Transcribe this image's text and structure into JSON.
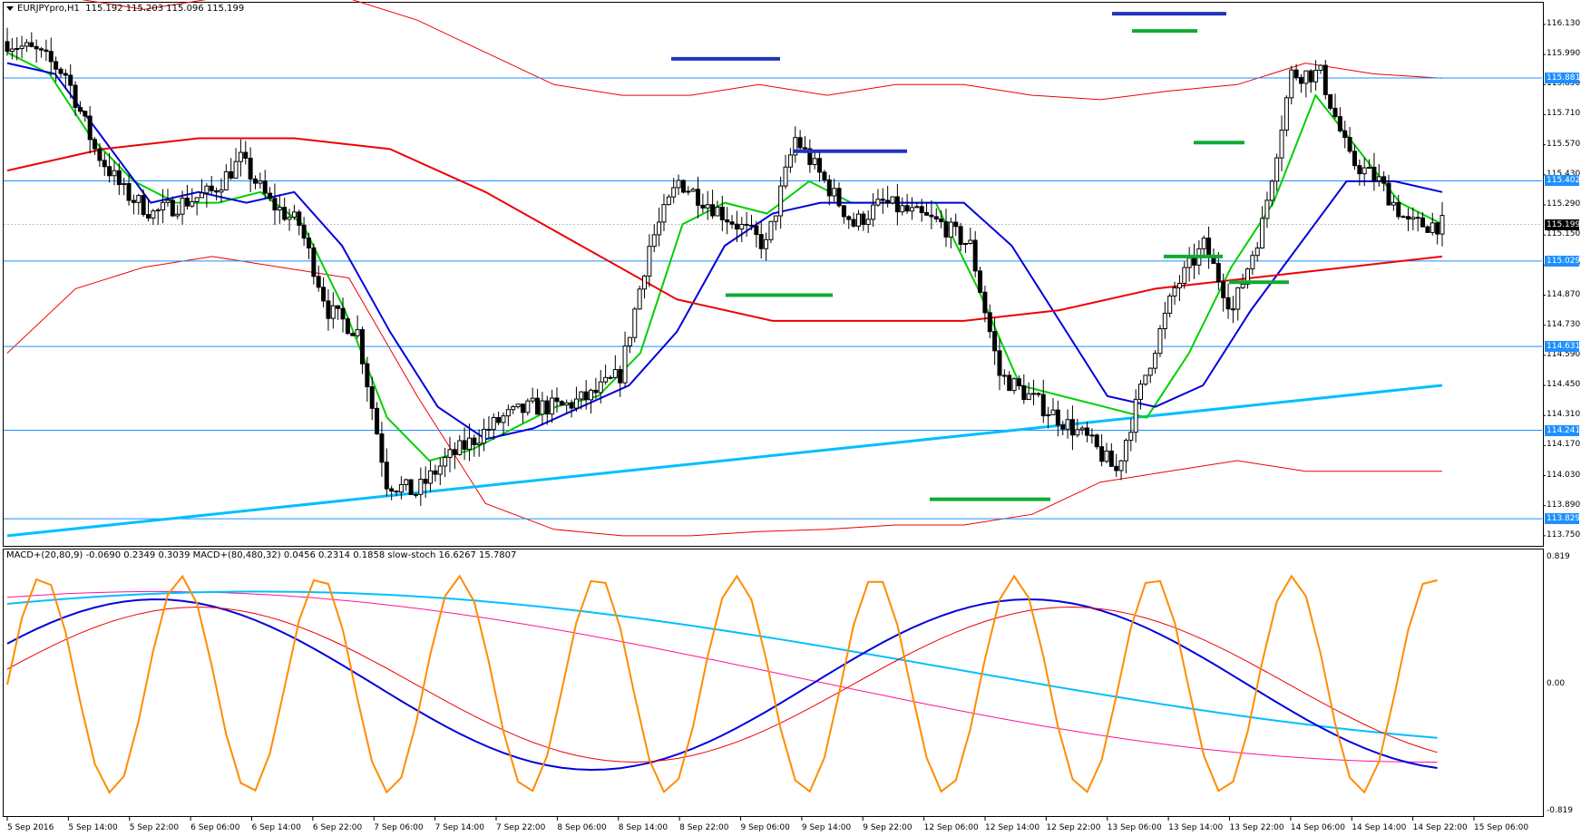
{
  "header": {
    "symbol": "EURJPYpro,H1",
    "ohlc": "115.192 115.203 115.096 115.199"
  },
  "indicator_header": "MACD+(20,80,9) -0.0690 0.2349 0.3039  MACD+(80,480,32) 0.0456 0.2314 0.1858  slow-stoch 16.6267 15.7807",
  "price_axis": [
    "116.130",
    "115.990",
    "115.850",
    "115.710",
    "115.570",
    "115.430",
    "115.290",
    "115.150",
    "115.010",
    "114.870",
    "114.730",
    "114.590",
    "114.450",
    "114.310",
    "114.170",
    "114.030",
    "113.890",
    "113.750"
  ],
  "price_badges": [
    {
      "label": "115.881",
      "price": 115.881,
      "current": false
    },
    {
      "label": "115.402",
      "price": 115.402,
      "current": false
    },
    {
      "label": "115.199",
      "price": 115.199,
      "current": true
    },
    {
      "label": "115.029",
      "price": 115.029,
      "current": false
    },
    {
      "label": "114.631",
      "price": 114.631,
      "current": false
    },
    {
      "label": "114.241",
      "price": 114.241,
      "current": false
    },
    {
      "label": "113.829",
      "price": 113.829,
      "current": false
    }
  ],
  "indicator_axis": [
    "0.819",
    "0.00",
    "-0.819"
  ],
  "time_axis": [
    "5 Sep 2016",
    "5 Sep 14:00",
    "5 Sep 22:00",
    "6 Sep 06:00",
    "6 Sep 14:00",
    "6 Sep 22:00",
    "7 Sep 06:00",
    "7 Sep 14:00",
    "7 Sep 22:00",
    "8 Sep 06:00",
    "8 Sep 14:00",
    "8 Sep 22:00",
    "9 Sep 06:00",
    "9 Sep 14:00",
    "9 Sep 22:00",
    "12 Sep 06:00",
    "12 Sep 14:00",
    "12 Sep 22:00",
    "13 Sep 06:00",
    "13 Sep 14:00",
    "13 Sep 22:00",
    "14 Sep 06:00",
    "14 Sep 14:00",
    "14 Sep 22:00",
    "15 Sep 06:00"
  ],
  "colors": {
    "hline": "#1e90ff",
    "trendline": "#00bfff",
    "ma_fast": "#00d000",
    "ma_mid": "#0000dd",
    "ma_slow": "#ee0000",
    "band": "#ee0000",
    "resistance_mark": "#2233bb",
    "support_mark": "#11aa33",
    "stoch": "#ff8c00"
  },
  "chart_data": {
    "type": "candlestick",
    "symbol": "EURJPYpro",
    "timeframe": "H1",
    "last_ohlc": {
      "open": 115.192,
      "high": 115.203,
      "low": 115.096,
      "close": 115.199
    },
    "ylim": [
      113.72,
      116.21
    ],
    "horizontal_levels": [
      115.881,
      115.402,
      115.029,
      114.631,
      114.241,
      113.829
    ],
    "close_path": [
      [
        0,
        116.05
      ],
      [
        6,
        116.0
      ],
      [
        12,
        115.9
      ],
      [
        18,
        115.55
      ],
      [
        24,
        115.35
      ],
      [
        30,
        115.25
      ],
      [
        36,
        115.3
      ],
      [
        42,
        115.35
      ],
      [
        48,
        115.5
      ],
      [
        54,
        115.3
      ],
      [
        60,
        115.2
      ],
      [
        66,
        114.8
      ],
      [
        72,
        114.7
      ],
      [
        78,
        114.0
      ],
      [
        84,
        113.95
      ],
      [
        90,
        114.1
      ],
      [
        96,
        114.2
      ],
      [
        102,
        114.3
      ],
      [
        108,
        114.35
      ],
      [
        114,
        114.35
      ],
      [
        120,
        114.4
      ],
      [
        126,
        114.5
      ],
      [
        132,
        115.1
      ],
      [
        138,
        115.4
      ],
      [
        144,
        115.3
      ],
      [
        150,
        115.2
      ],
      [
        156,
        115.1
      ],
      [
        162,
        115.6
      ],
      [
        168,
        115.4
      ],
      [
        174,
        115.2
      ],
      [
        180,
        115.3
      ],
      [
        186,
        115.25
      ],
      [
        192,
        115.2
      ],
      [
        198,
        115.1
      ],
      [
        204,
        114.5
      ],
      [
        210,
        114.4
      ],
      [
        216,
        114.3
      ],
      [
        222,
        114.2
      ],
      [
        228,
        114.05
      ],
      [
        234,
        114.5
      ],
      [
        240,
        114.9
      ],
      [
        246,
        115.1
      ],
      [
        252,
        114.8
      ],
      [
        258,
        115.2
      ],
      [
        264,
        115.9
      ],
      [
        270,
        115.9
      ],
      [
        276,
        115.5
      ],
      [
        282,
        115.4
      ],
      [
        288,
        115.2
      ],
      [
        294,
        115.199
      ]
    ],
    "series": [
      {
        "values": [
          116.0,
          115.9,
          115.6,
          115.4,
          115.3,
          115.3,
          115.35,
          115.2,
          114.8,
          114.3,
          114.1,
          114.15,
          114.25,
          114.35,
          114.4,
          114.6,
          115.2,
          115.3,
          115.25,
          115.4,
          115.3,
          115.3,
          115.3,
          114.9,
          114.45,
          114.4,
          114.35,
          114.3,
          114.6,
          115.0,
          115.3,
          115.8,
          115.55,
          115.3,
          115.2
        ]
      },
      {
        "values": [
          115.95,
          115.9,
          115.6,
          115.3,
          115.35,
          115.3,
          115.35,
          115.1,
          114.7,
          114.35,
          114.2,
          114.25,
          114.35,
          114.45,
          114.7,
          115.1,
          115.25,
          115.3,
          115.3,
          115.3,
          115.3,
          115.1,
          114.75,
          114.4,
          114.35,
          114.45,
          114.8,
          115.1,
          115.4,
          115.4,
          115.35
        ]
      },
      {
        "values": [
          115.45,
          115.55,
          115.6,
          115.6,
          115.55,
          115.35,
          115.1,
          114.85,
          114.75,
          114.75,
          114.75,
          114.8,
          114.9,
          114.95,
          115.0,
          115.05
        ]
      },
      {
        "values": [
          113.75,
          113.85,
          113.95,
          114.05,
          114.15,
          114.25,
          114.35,
          114.45
        ]
      }
    ],
    "support_resistance_marks": [
      {
        "kind": "resistance",
        "price": 115.97
      },
      {
        "kind": "resistance",
        "price": 115.54
      },
      {
        "kind": "support",
        "price": 114.87
      },
      {
        "kind": "support",
        "price": 113.92
      },
      {
        "kind": "resistance",
        "price": 116.18
      },
      {
        "kind": "support",
        "price": 116.1
      },
      {
        "kind": "support",
        "price": 115.58
      },
      {
        "kind": "support",
        "price": 115.05
      },
      {
        "kind": "support",
        "price": 114.93
      }
    ],
    "indicator": {
      "ylim": [
        -0.819,
        0.819
      ],
      "macd_fast": {
        "main": -0.069,
        "signal": 0.2349,
        "hist": 0.3039
      },
      "macd_slow": {
        "main": 0.0456,
        "signal": 0.2314,
        "hist": 0.1858
      },
      "stoch": {
        "k": 16.6267,
        "d": 15.7807
      }
    }
  }
}
